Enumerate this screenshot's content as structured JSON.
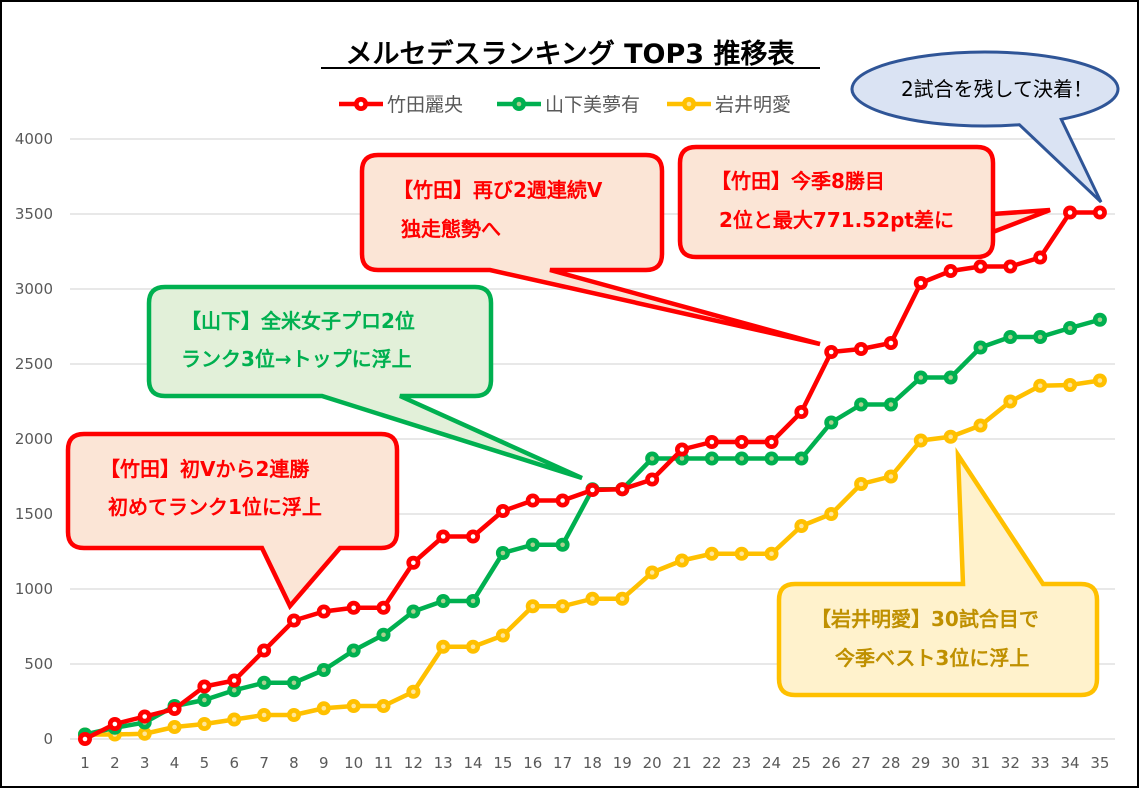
{
  "chart_data": {
    "type": "line",
    "title": "メルセデスランキング TOP3 推移表",
    "xlabel": "",
    "ylabel": "",
    "x": [
      1,
      2,
      3,
      4,
      5,
      6,
      7,
      8,
      9,
      10,
      11,
      12,
      13,
      14,
      15,
      16,
      17,
      18,
      19,
      20,
      21,
      22,
      23,
      24,
      25,
      26,
      27,
      28,
      29,
      30,
      31,
      32,
      33,
      34,
      35
    ],
    "ylim": [
      0,
      4000
    ],
    "yticks": [
      0,
      500,
      1000,
      1500,
      2000,
      2500,
      3000,
      3500,
      4000
    ],
    "grid": true,
    "legend_position": "top",
    "series": [
      {
        "name": "竹田麗央",
        "color": "#FF0000",
        "values": [
          0,
          100,
          150,
          200,
          350,
          390,
          590,
          790,
          850,
          875,
          875,
          1175,
          1350,
          1350,
          1520,
          1590,
          1590,
          1660,
          1665,
          1730,
          1930,
          1980,
          1980,
          1980,
          2180,
          2580,
          2600,
          2640,
          3040,
          3120,
          3150,
          3150,
          3210,
          3510,
          3510
        ]
      },
      {
        "name": "山下美夢有",
        "color": "#00B050",
        "values": [
          30,
          75,
          110,
          220,
          260,
          325,
          375,
          375,
          460,
          590,
          695,
          850,
          920,
          920,
          1240,
          1295,
          1295,
          1665,
          1665,
          1870,
          1870,
          1870,
          1870,
          1870,
          1870,
          2110,
          2230,
          2230,
          2410,
          2410,
          2610,
          2680,
          2680,
          2740,
          2795
        ]
      },
      {
        "name": "岩井明愛",
        "color": "#FFC000",
        "values": [
          30,
          30,
          35,
          80,
          100,
          130,
          160,
          160,
          205,
          220,
          220,
          315,
          615,
          615,
          690,
          885,
          885,
          935,
          935,
          1110,
          1190,
          1235,
          1235,
          1235,
          1420,
          1500,
          1700,
          1750,
          1990,
          2015,
          2090,
          2250,
          2355,
          2360,
          2390
        ]
      }
    ],
    "annotations": [
      {
        "lines": [
          "【竹田】初Vから2連勝",
          "初めてランク1位に浮上"
        ],
        "x": 8,
        "color": "#FF0000",
        "fill": "#FBE5D6"
      },
      {
        "lines": [
          "【山下】全米女子プロ2位",
          "ランク3位→トップに浮上"
        ],
        "x": 18,
        "color": "#00B050",
        "fill": "#E2F0D9"
      },
      {
        "lines": [
          "【竹田】再び2週連続V",
          "独走態勢へ"
        ],
        "x": 26,
        "color": "#FF0000",
        "fill": "#FBE5D6"
      },
      {
        "lines": [
          "【竹田】今季8勝目",
          "2位と最大771.52pt差に"
        ],
        "x": 34,
        "color": "#FF0000",
        "fill": "#FBE5D6"
      },
      {
        "lines": [
          "【岩井明愛】30試合目で",
          "今季ベスト3位に浮上"
        ],
        "x": 30,
        "color": "#FFC000",
        "text_color": "#BF9000",
        "fill": "#FFF2CC"
      },
      {
        "lines": [
          "2試合を残して決着！"
        ],
        "x": 35,
        "color": "#2F5597",
        "fill": "#DAE3F3",
        "text_color": "#000000"
      }
    ]
  }
}
